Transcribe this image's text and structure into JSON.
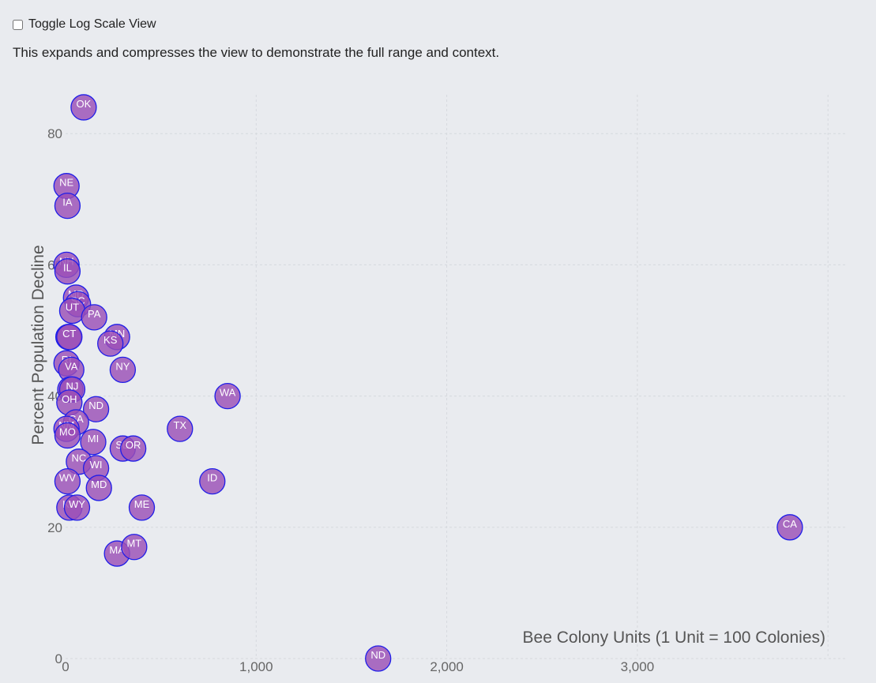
{
  "toggle": {
    "label": "Toggle Log Scale View",
    "checked": false
  },
  "description": "This expands and compresses the view to demonstrate the full range and context.",
  "chart_data": {
    "type": "scatter",
    "xlabel": "Bee Colony Units (1 Unit = 100 Colonies)",
    "ylabel": "Percent Population Decline",
    "xlim": [
      0,
      4000
    ],
    "ylim": [
      0,
      85
    ],
    "xticks": [
      0,
      1000,
      2000,
      3000
    ],
    "xtick_labels": [
      "0",
      "1,000",
      "2,000",
      "3,000"
    ],
    "yticks": [
      0,
      20,
      40,
      60,
      80
    ],
    "ytick_labels": [
      "0",
      "20",
      "40",
      "60",
      "80"
    ],
    "grid": true,
    "marker_color": "#9b4fb7",
    "marker_edge_color": "#1f1ee8",
    "points": [
      {
        "label": "OK",
        "x": 95,
        "y": 84
      },
      {
        "label": "NE",
        "x": 5,
        "y": 72
      },
      {
        "label": "IA",
        "x": 10,
        "y": 69
      },
      {
        "label": "NH",
        "x": 5,
        "y": 60
      },
      {
        "label": "IL",
        "x": 10,
        "y": 59
      },
      {
        "label": "MD",
        "x": 55,
        "y": 55
      },
      {
        "label": "SC",
        "x": 65,
        "y": 54
      },
      {
        "label": "UT",
        "x": 35,
        "y": 53
      },
      {
        "label": "PA",
        "x": 150,
        "y": 52
      },
      {
        "label": "VT",
        "x": 15,
        "y": 49
      },
      {
        "label": "CT",
        "x": 20,
        "y": 49
      },
      {
        "label": "MN",
        "x": 270,
        "y": 49
      },
      {
        "label": "KS",
        "x": 235,
        "y": 48
      },
      {
        "label": "RI",
        "x": 5,
        "y": 45
      },
      {
        "label": "VA",
        "x": 30,
        "y": 44
      },
      {
        "label": "NY",
        "x": 300,
        "y": 44
      },
      {
        "label": "WA",
        "x": 850,
        "y": 40
      },
      {
        "label": "IN",
        "x": 25,
        "y": 41
      },
      {
        "label": "NJ",
        "x": 35,
        "y": 41
      },
      {
        "label": "OH",
        "x": 20,
        "y": 39
      },
      {
        "label": "ND",
        "x": 160,
        "y": 38
      },
      {
        "label": "GA",
        "x": 55,
        "y": 36
      },
      {
        "label": "TX",
        "x": 600,
        "y": 35
      },
      {
        "label": "NM",
        "x": 5,
        "y": 35
      },
      {
        "label": "MO",
        "x": 10,
        "y": 34
      },
      {
        "label": "MI",
        "x": 145,
        "y": 33
      },
      {
        "label": "SD",
        "x": 300,
        "y": 32
      },
      {
        "label": "OR",
        "x": 355,
        "y": 32
      },
      {
        "label": "NC",
        "x": 70,
        "y": 30
      },
      {
        "label": "WI",
        "x": 160,
        "y": 29
      },
      {
        "label": "WV",
        "x": 10,
        "y": 27
      },
      {
        "label": "MD",
        "x": 175,
        "y": 26
      },
      {
        "label": "ID",
        "x": 770,
        "y": 27
      },
      {
        "label": "KY",
        "x": 20,
        "y": 23
      },
      {
        "label": "WY",
        "x": 60,
        "y": 23
      },
      {
        "label": "ME",
        "x": 400,
        "y": 23
      },
      {
        "label": "CA",
        "x": 3800,
        "y": 20
      },
      {
        "label": "MA",
        "x": 270,
        "y": 16
      },
      {
        "label": "MT",
        "x": 360,
        "y": 17
      },
      {
        "label": "ND",
        "x": 1640,
        "y": 0
      }
    ]
  }
}
